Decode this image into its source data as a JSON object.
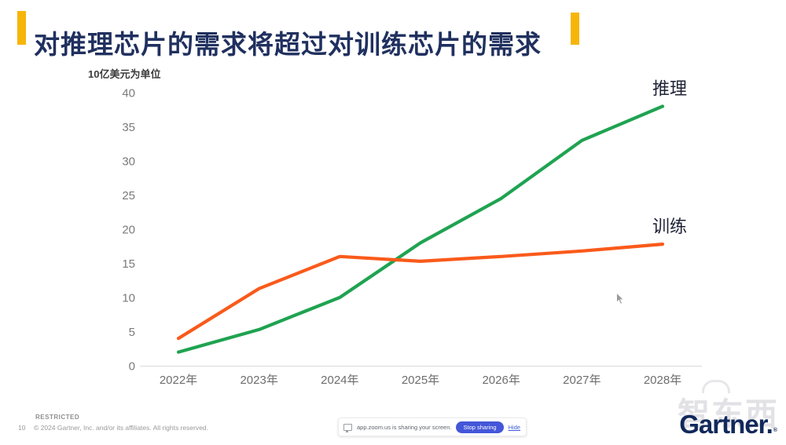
{
  "title": {
    "text": "对推理芯片的需求将超过对训练芯片的需求"
  },
  "colors": {
    "accent_yellow": "#F7B50A",
    "title_navy": "#20305F",
    "inference_green": "#1FA351",
    "training_orange": "#FA5A1B",
    "stop_button_blue": "#4456D9",
    "gartner_navy": "#11295B"
  },
  "chart_data": {
    "type": "line",
    "unit_label": "10亿美元为单位",
    "categories": [
      "2022年",
      "2023年",
      "2024年",
      "2025年",
      "2026年",
      "2027年",
      "2028年"
    ],
    "series": [
      {
        "key": "inference",
        "name": "推理",
        "color": "#1FA351",
        "values": [
          2,
          5.3,
          10,
          18,
          24.5,
          33,
          38
        ]
      },
      {
        "key": "training",
        "name": "训练",
        "color": "#FA5A1B",
        "values": [
          4,
          11.3,
          16,
          15.3,
          16,
          16.8,
          17.8
        ]
      }
    ],
    "ylim": [
      0,
      40
    ],
    "yticks": [
      0,
      5,
      10,
      15,
      20,
      25,
      30,
      35,
      40
    ],
    "grid": false,
    "legend_position": "labels at right end of each line"
  },
  "share_bar": {
    "message": "app.zoom.us is sharing your screen.",
    "stop_button": "Stop sharing",
    "hide_link": "Hide"
  },
  "footer": {
    "restricted": "RESTRICTED",
    "page_number": "10",
    "copyright": "© 2024 Gartner, Inc. and/or its affiliates. All rights reserved.",
    "logo_text": "Gartner.",
    "registered_mark": "®"
  },
  "watermark": {
    "text": "智东西"
  }
}
